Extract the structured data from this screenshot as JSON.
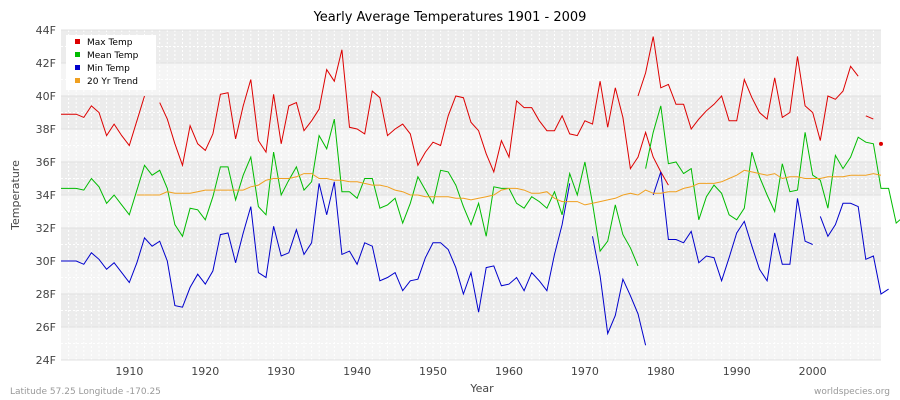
{
  "chart_data": {
    "type": "line",
    "title": "Yearly Average Temperatures 1901 - 2009",
    "xlabel": "Year",
    "ylabel": "Temperature",
    "xlim": [
      1901,
      2009
    ],
    "ylim": [
      24,
      44
    ],
    "x_ticks": [
      1910,
      1920,
      1930,
      1940,
      1950,
      1960,
      1970,
      1980,
      1990,
      2000
    ],
    "y_ticks": [
      {
        "v": 24,
        "label": "24F"
      },
      {
        "v": 26,
        "label": "26F"
      },
      {
        "v": 28,
        "label": "28F"
      },
      {
        "v": 30,
        "label": "30F"
      },
      {
        "v": 32,
        "label": "32F"
      },
      {
        "v": 34,
        "label": "34F"
      },
      {
        "v": 36,
        "label": "36F"
      },
      {
        "v": 38,
        "label": "38F"
      },
      {
        "v": 40,
        "label": "40F"
      },
      {
        "v": 42,
        "label": "42F"
      },
      {
        "v": 44,
        "label": "44F"
      }
    ],
    "grid": true,
    "legend_position": "top-left",
    "series": [
      {
        "name": "Max Temp",
        "color": "#dd0000",
        "segments": [
          {
            "x0": 1901,
            "values": [
              38.9,
              38.9,
              38.9,
              38.7,
              39.4,
              39.0,
              37.6,
              38.3,
              37.6,
              37.0,
              38.5,
              40.0
            ]
          },
          {
            "x0": 1914,
            "values": [
              39.6,
              38.6,
              37.1,
              35.8,
              38.2,
              37.1,
              36.7,
              37.7,
              40.1,
              40.2,
              37.4,
              39.4,
              41.0,
              37.3,
              36.6,
              40.1,
              37.1,
              39.4,
              39.6,
              37.9,
              38.5,
              39.2,
              41.6,
              40.9,
              42.8,
              38.1,
              38.0,
              37.7,
              40.3,
              39.9,
              37.6,
              38.0,
              38.3,
              37.7,
              35.8,
              36.6,
              37.2,
              37.0,
              38.8,
              40.0,
              39.9,
              38.4,
              37.9,
              36.5,
              35.4,
              37.3,
              36.3,
              39.7,
              39.3,
              39.3,
              38.5,
              37.9,
              37.9,
              38.8,
              37.7,
              37.6,
              38.5,
              38.3,
              40.9,
              38.1,
              40.5,
              38.7,
              35.6,
              36.3,
              37.8,
              36.3,
              35.4,
              34.6
            ]
          },
          {
            "x0": 1977,
            "values": [
              40.0,
              41.4,
              43.6,
              40.5,
              40.7,
              39.5,
              39.5,
              38.0,
              38.6,
              39.1,
              39.5,
              40.0,
              38.5,
              38.5,
              41.0,
              39.9,
              39.0,
              38.6,
              41.1,
              38.7,
              39.0,
              42.4,
              39.4,
              39.0,
              37.3,
              40.0,
              39.8,
              40.3,
              41.8,
              41.2
            ]
          },
          {
            "x0": 2007,
            "values": [
              38.8,
              38.6
            ]
          },
          {
            "x0": 2009,
            "values": [
              37.1
            ]
          }
        ]
      },
      {
        "name": "Mean Temp",
        "color": "#00bb00",
        "segments": [
          {
            "x0": 1901,
            "values": [
              34.4,
              34.4,
              34.4,
              34.3,
              35.0,
              34.5,
              33.5,
              34.0,
              33.4,
              32.8,
              34.3,
              35.8,
              35.2,
              35.5,
              34.4,
              32.2,
              31.5,
              33.2,
              33.1,
              32.5,
              33.9,
              35.7,
              35.7,
              33.7,
              35.2,
              36.3,
              33.3,
              32.8,
              36.6,
              34.0,
              34.9,
              35.7,
              34.3,
              34.8,
              37.6,
              36.8,
              38.6,
              34.2,
              34.2,
              33.8,
              35.0,
              35.0,
              33.2,
              33.4,
              33.8,
              32.3,
              33.5,
              35.1,
              34.3,
              33.5,
              35.5,
              35.4,
              34.6,
              33.3,
              32.2,
              33.5,
              31.5,
              34.5,
              34.4,
              34.4,
              33.5,
              33.2,
              33.9,
              33.6,
              33.2,
              34.2,
              32.8,
              35.3,
              34.0,
              36.0,
              33.5,
              30.6,
              31.2,
              33.4,
              31.6,
              30.8,
              29.7
            ]
          },
          {
            "x0": 1978,
            "values": [
              35.6,
              37.8,
              39.4,
              35.9,
              36.0,
              35.3,
              35.6,
              32.5,
              33.9,
              34.6,
              34.1,
              32.8,
              32.5,
              33.2,
              36.6,
              35.1,
              34.0,
              33.0,
              35.9,
              34.2,
              34.3,
              37.8,
              35.2,
              34.9,
              33.2,
              36.4,
              35.6,
              36.3,
              37.5,
              37.2,
              37.1,
              34.4,
              34.4,
              32.3,
              32.7
            ]
          }
        ]
      },
      {
        "name": "Min Temp",
        "color": "#0000cc",
        "segments": [
          {
            "x0": 1901,
            "values": [
              30.0,
              30.0,
              30.0,
              29.8,
              30.5,
              30.1,
              29.5,
              29.9,
              29.3,
              28.7,
              29.9,
              31.4,
              30.9,
              31.2,
              30.0,
              27.3,
              27.2,
              28.4,
              29.2,
              28.6,
              29.4,
              31.6,
              31.7,
              29.9,
              31.7,
              33.3,
              29.3,
              29.0,
              32.1,
              30.3,
              30.5,
              31.9,
              30.4,
              31.1,
              34.7,
              32.8,
              34.8,
              30.4,
              30.6,
              29.8,
              31.1,
              30.9,
              28.8,
              29.0,
              29.3,
              28.2,
              28.8,
              28.9,
              30.2,
              31.1,
              31.1,
              30.7,
              29.6,
              28.0,
              29.3,
              26.9,
              29.6,
              29.7,
              28.5,
              28.6,
              29.0,
              28.2,
              29.3,
              28.8,
              28.2,
              30.4,
              32.2,
              34.7
            ]
          },
          {
            "x0": 1971,
            "values": [
              31.5,
              29.1,
              25.6,
              26.7,
              28.9,
              27.9,
              26.8,
              24.9
            ]
          },
          {
            "x0": 1979,
            "values": [
              34.0,
              35.4,
              31.3,
              31.3,
              31.1,
              31.8,
              29.9,
              30.3,
              30.2,
              28.8,
              30.2,
              31.7,
              32.4,
              30.9,
              29.5,
              28.8,
              31.7,
              29.8,
              29.8,
              33.8,
              31.2,
              31.0
            ]
          },
          {
            "x0": 2001,
            "values": [
              32.7,
              31.5,
              32.2,
              33.5,
              33.5,
              33.3,
              30.1,
              30.3,
              28.0,
              28.3
            ]
          }
        ]
      },
      {
        "name": "20 Yr Trend",
        "color": "#f0a020",
        "segments": [
          {
            "x0": 1911,
            "values": [
              34.0,
              34.0,
              34.0,
              34.0,
              34.2,
              34.1,
              34.1,
              34.1,
              34.2,
              34.3,
              34.3,
              34.3,
              34.3,
              34.3,
              34.3,
              34.5,
              34.6,
              34.9,
              35.0,
              35.0,
              35.0,
              35.1,
              35.3,
              35.3,
              35.0,
              35.0,
              34.9,
              34.9,
              34.8,
              34.8,
              34.7,
              34.6,
              34.6,
              34.5,
              34.3,
              34.2,
              34.0,
              34.0,
              33.9,
              33.9,
              33.9,
              33.9,
              33.8,
              33.8,
              33.7,
              33.8,
              33.9,
              34.0,
              34.3,
              34.4,
              34.4,
              34.3,
              34.1,
              34.1,
              34.2,
              33.8,
              33.6,
              33.6,
              33.6,
              33.4,
              33.5,
              33.6,
              33.7,
              33.8,
              34.0,
              34.1,
              34.0,
              34.3,
              34.1,
              34.1,
              34.2,
              34.2,
              34.4,
              34.5,
              34.7,
              34.7,
              34.7,
              34.8,
              35.0,
              35.2,
              35.5,
              35.4,
              35.3,
              35.2,
              35.3,
              35.0,
              35.1,
              35.1,
              35.0,
              35.0,
              35.0,
              35.1,
              35.1,
              35.1,
              35.2,
              35.2,
              35.2,
              35.3,
              35.2
            ]
          }
        ]
      }
    ]
  },
  "footer": {
    "left": "Latitude 57.25 Longitude -170.25",
    "right": "worldspecies.org"
  }
}
